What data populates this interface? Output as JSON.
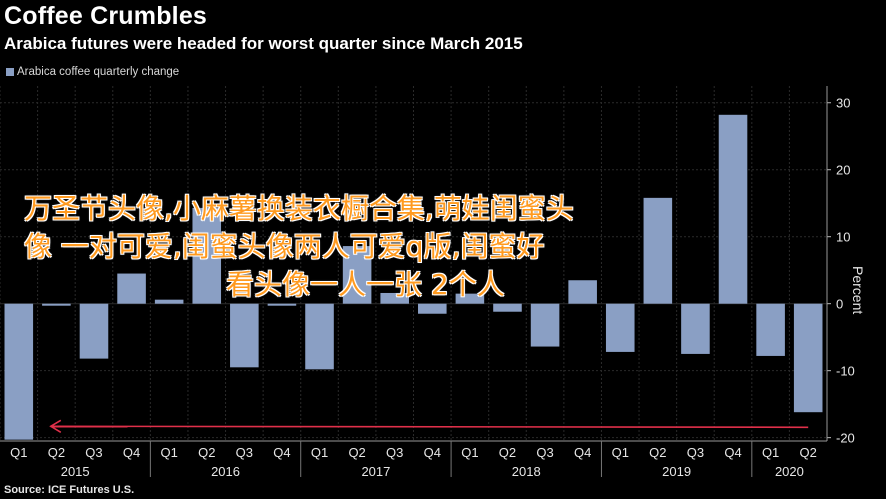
{
  "header": {
    "title": "Coffee Crumbles",
    "subtitle": "Arabica futures were headed for worst quarter since March 2015"
  },
  "legend": {
    "label": "Arabica coffee quarterly change"
  },
  "source": "Source: ICE Futures U.S.",
  "overlay": {
    "line1": "万圣节头像,小麻薯换装衣橱合集,萌娃闺蜜头",
    "line2": "像 一对可爱,闺蜜头像两人可爱q版,闺蜜好",
    "line3": "看头像一人一张 2个人"
  },
  "colors": {
    "bar": "#8a9fc4",
    "grid": "#2a2a2a",
    "arrow": "#e0304a",
    "overlay_text": "#ff9a1f"
  },
  "chart_data": {
    "type": "bar",
    "ylabel": "Percent",
    "ylim": [
      -20.5,
      32.5
    ],
    "yticks": [
      30,
      20,
      10,
      0,
      -10,
      -20
    ],
    "grid": true,
    "legend_position": "top-left",
    "quarter_labels": [
      "Q1",
      "Q2",
      "Q3",
      "Q4",
      "Q1",
      "Q2",
      "Q3",
      "Q4",
      "Q1",
      "Q2",
      "Q3",
      "Q4",
      "Q1",
      "Q2",
      "Q3",
      "Q4",
      "Q1",
      "Q2",
      "Q3",
      "Q4",
      "Q1",
      "Q2"
    ],
    "year_labels": [
      "2015",
      "2016",
      "2017",
      "2018",
      "2019",
      "2020"
    ],
    "series": [
      {
        "name": "Arabica coffee quarterly change",
        "values": [
          -20.3,
          -0.3,
          -8.2,
          4.5,
          0.6,
          14.3,
          -9.5,
          -0.3,
          -9.8,
          8.6,
          1.6,
          -1.5,
          1.5,
          -1.2,
          -6.4,
          3.5,
          -7.2,
          15.8,
          -7.5,
          28.2,
          -7.8,
          -16.2
        ]
      }
    ],
    "annotations": [
      {
        "type": "arrow",
        "direction": "left",
        "from_category": "Q2 2020",
        "to_category": "Q1 2015",
        "y": -18.3
      }
    ]
  }
}
